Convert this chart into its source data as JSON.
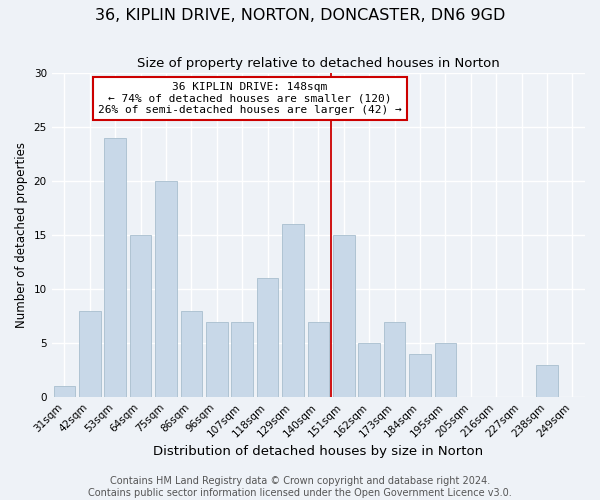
{
  "title": "36, KIPLIN DRIVE, NORTON, DONCASTER, DN6 9GD",
  "subtitle": "Size of property relative to detached houses in Norton",
  "xlabel": "Distribution of detached houses by size in Norton",
  "ylabel": "Number of detached properties",
  "categories": [
    "31sqm",
    "42sqm",
    "53sqm",
    "64sqm",
    "75sqm",
    "86sqm",
    "96sqm",
    "107sqm",
    "118sqm",
    "129sqm",
    "140sqm",
    "151sqm",
    "162sqm",
    "173sqm",
    "184sqm",
    "195sqm",
    "205sqm",
    "216sqm",
    "227sqm",
    "238sqm",
    "249sqm"
  ],
  "values": [
    1,
    8,
    24,
    15,
    20,
    8,
    7,
    7,
    11,
    16,
    7,
    15,
    5,
    7,
    4,
    5,
    0,
    0,
    0,
    3,
    0
  ],
  "bar_color": "#c8d8e8",
  "bar_edge_color": "#a8bece",
  "vline_color": "#cc0000",
  "vline_index": 11,
  "annotation_title": "36 KIPLIN DRIVE: 148sqm",
  "annotation_line1": "← 74% of detached houses are smaller (120)",
  "annotation_line2": "26% of semi-detached houses are larger (42) →",
  "annotation_box_color": "#ffffff",
  "annotation_box_edge": "#cc0000",
  "ylim": [
    0,
    30
  ],
  "yticks": [
    0,
    5,
    10,
    15,
    20,
    25,
    30
  ],
  "footer1": "Contains HM Land Registry data © Crown copyright and database right 2024.",
  "footer2": "Contains public sector information licensed under the Open Government Licence v3.0.",
  "background_color": "#eef2f7",
  "grid_color": "#ffffff",
  "title_fontsize": 11.5,
  "subtitle_fontsize": 9.5,
  "xlabel_fontsize": 9.5,
  "ylabel_fontsize": 8.5,
  "tick_fontsize": 7.5,
  "annotation_fontsize": 8.0,
  "footer_fontsize": 7.0
}
